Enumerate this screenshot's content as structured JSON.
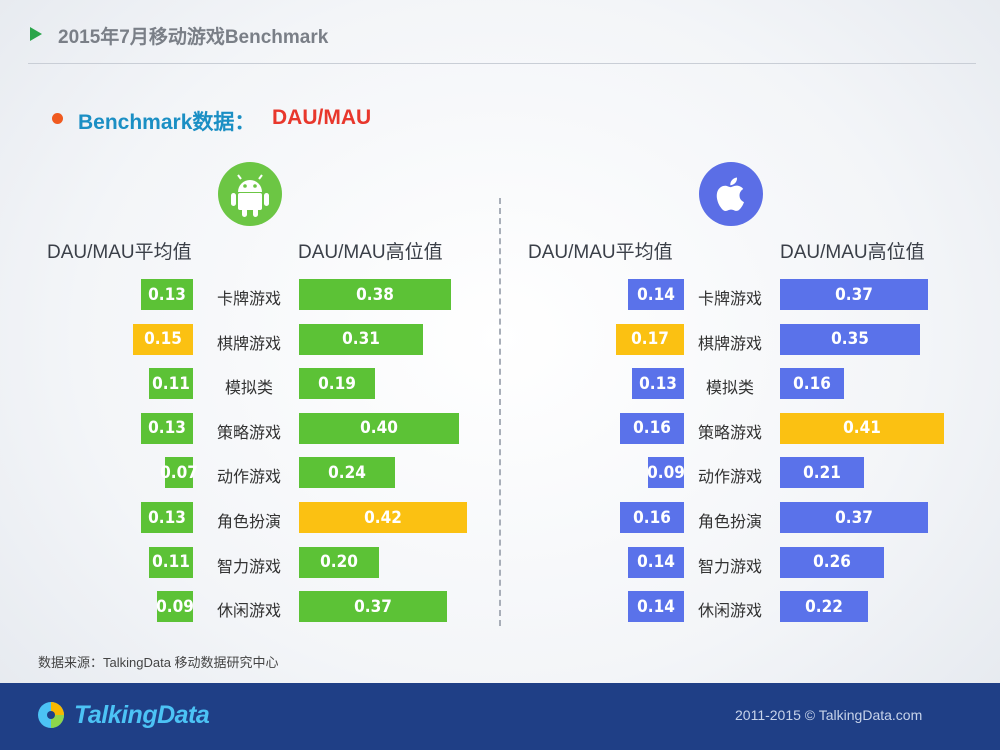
{
  "header": {
    "title": "2015年7月移动游戏Benchmark"
  },
  "subtitle": {
    "part1": "Benchmark数据：",
    "part2": "DAU/MAU"
  },
  "columns": {
    "avg": "DAU/MAU平均值",
    "high": "DAU/MAU高位值"
  },
  "colors": {
    "android_green": "#5cc236",
    "ios_blue": "#5a72ea",
    "highlight_yellow": "#fbc112"
  },
  "chart_data": [
    {
      "type": "bar",
      "platform": "android",
      "categories": [
        "卡牌游戏",
        "棋牌游戏",
        "模拟类",
        "策略游戏",
        "动作游戏",
        "角色扮演",
        "智力游戏",
        "休闲游戏"
      ],
      "series": [
        {
          "name": "DAU/MAU平均值",
          "values": [
            0.13,
            0.15,
            0.11,
            0.13,
            0.07,
            0.13,
            0.11,
            0.09
          ],
          "highlight_index": 1
        },
        {
          "name": "DAU/MAU高位值",
          "values": [
            0.38,
            0.31,
            0.19,
            0.4,
            0.24,
            0.42,
            0.2,
            0.37
          ],
          "highlight_index": 5
        }
      ]
    },
    {
      "type": "bar",
      "platform": "ios",
      "categories": [
        "卡牌游戏",
        "棋牌游戏",
        "模拟类",
        "策略游戏",
        "动作游戏",
        "角色扮演",
        "智力游戏",
        "休闲游戏"
      ],
      "series": [
        {
          "name": "DAU/MAU平均值",
          "values": [
            0.14,
            0.17,
            0.13,
            0.16,
            0.09,
            0.16,
            0.14,
            0.14
          ],
          "highlight_index": 1
        },
        {
          "name": "DAU/MAU高位值",
          "values": [
            0.37,
            0.35,
            0.16,
            0.41,
            0.21,
            0.37,
            0.26,
            0.22
          ],
          "highlight_index": 3
        }
      ]
    }
  ],
  "source": "数据来源：TalkingData 移动数据研究中心",
  "footer": {
    "logo": "TalkingData",
    "copyright": "2011-2015 © TalkingData.com"
  }
}
